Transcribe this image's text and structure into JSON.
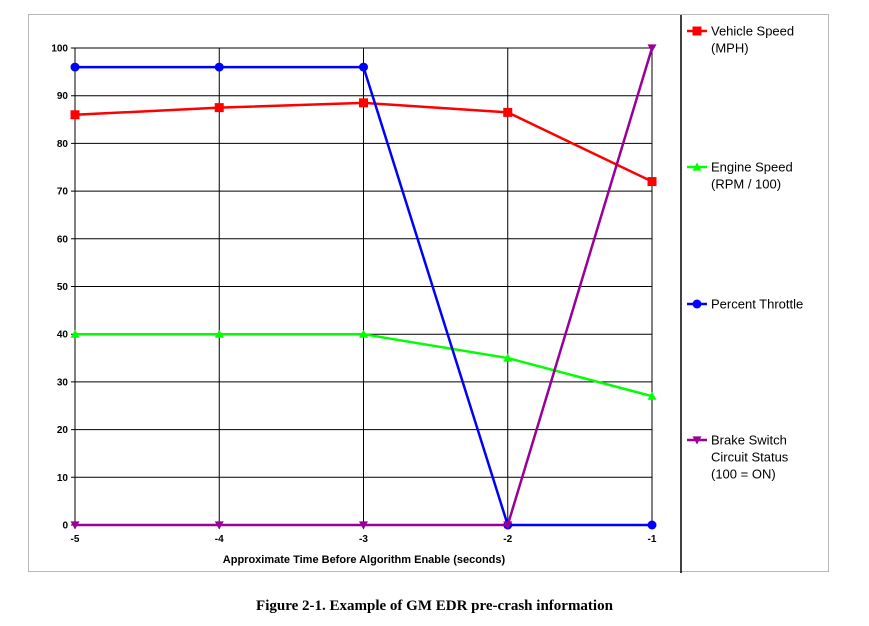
{
  "caption": "Figure 2-1.  Example of GM EDR pre-crash information",
  "chart_data": {
    "type": "line",
    "x": [
      -5,
      -4,
      -3,
      -2,
      -1
    ],
    "xlabel": "Approximate Time Before Algorithm Enable (seconds)",
    "ylabel": "",
    "xlim": [
      -5,
      -1
    ],
    "ylim": [
      0,
      100
    ],
    "yticks": [
      0,
      10,
      20,
      30,
      40,
      50,
      60,
      70,
      80,
      90,
      100
    ],
    "grid": true,
    "legend_position": "right",
    "series": [
      {
        "name": "Vehicle Speed (MPH)",
        "legend_lines": [
          "Vehicle Speed",
          "(MPH)"
        ],
        "color": "#ff0000",
        "marker": "square",
        "values": [
          86,
          87.5,
          88.5,
          86.5,
          72
        ]
      },
      {
        "name": "Engine Speed (RPM / 100)",
        "legend_lines": [
          "Engine Speed",
          "(RPM / 100)"
        ],
        "color": "#00ff00",
        "marker": "triangle-up",
        "values": [
          40,
          40,
          40,
          35,
          27
        ]
      },
      {
        "name": "Percent Throttle",
        "legend_lines": [
          "Percent Throttle"
        ],
        "color": "#0000ff",
        "marker": "circle",
        "values": [
          96,
          96,
          96,
          0,
          0
        ]
      },
      {
        "name": "Brake Switch Circuit Status (100 = ON)",
        "legend_lines": [
          "Brake Switch",
          "Circuit Status",
          "(100 = ON)"
        ],
        "color": "#990099",
        "marker": "triangle-down",
        "values": [
          0,
          0,
          0,
          0,
          100
        ]
      }
    ]
  }
}
